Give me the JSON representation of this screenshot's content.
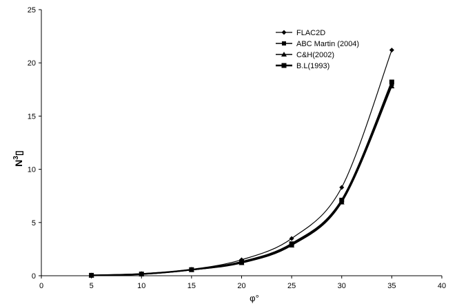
{
  "chart_data": {
    "type": "line",
    "xlabel": "φ°",
    "ylabel": "N",
    "ylabel_sup": "3",
    "ylabel_box": "▯",
    "xlim": [
      0,
      40
    ],
    "ylim": [
      0,
      25
    ],
    "xticks": [
      "0",
      "5",
      "10",
      "15",
      "20",
      "25",
      "30",
      "35",
      "40"
    ],
    "yticks": [
      "0",
      "5",
      "10",
      "15",
      "20",
      "25"
    ],
    "grid": false,
    "legend_position": "top-right",
    "x": [
      5,
      10,
      15,
      20,
      25,
      30,
      35
    ],
    "series": [
      {
        "name": "FLAC2D",
        "marker": "diamond",
        "values": [
          0.05,
          0.2,
          0.6,
          1.5,
          3.5,
          8.3,
          21.2
        ]
      },
      {
        "name": "ABC Martin (2004)",
        "marker": "square",
        "values": [
          0.03,
          0.15,
          0.55,
          1.25,
          2.9,
          7.0,
          18.0
        ]
      },
      {
        "name": "C&H(2002)",
        "marker": "triangle",
        "values": [
          0.03,
          0.15,
          0.55,
          1.2,
          2.85,
          6.9,
          17.8
        ]
      },
      {
        "name": "B.L(1993)",
        "marker": "square-large",
        "values": [
          0.04,
          0.16,
          0.57,
          1.3,
          3.0,
          7.1,
          18.2
        ]
      }
    ]
  }
}
